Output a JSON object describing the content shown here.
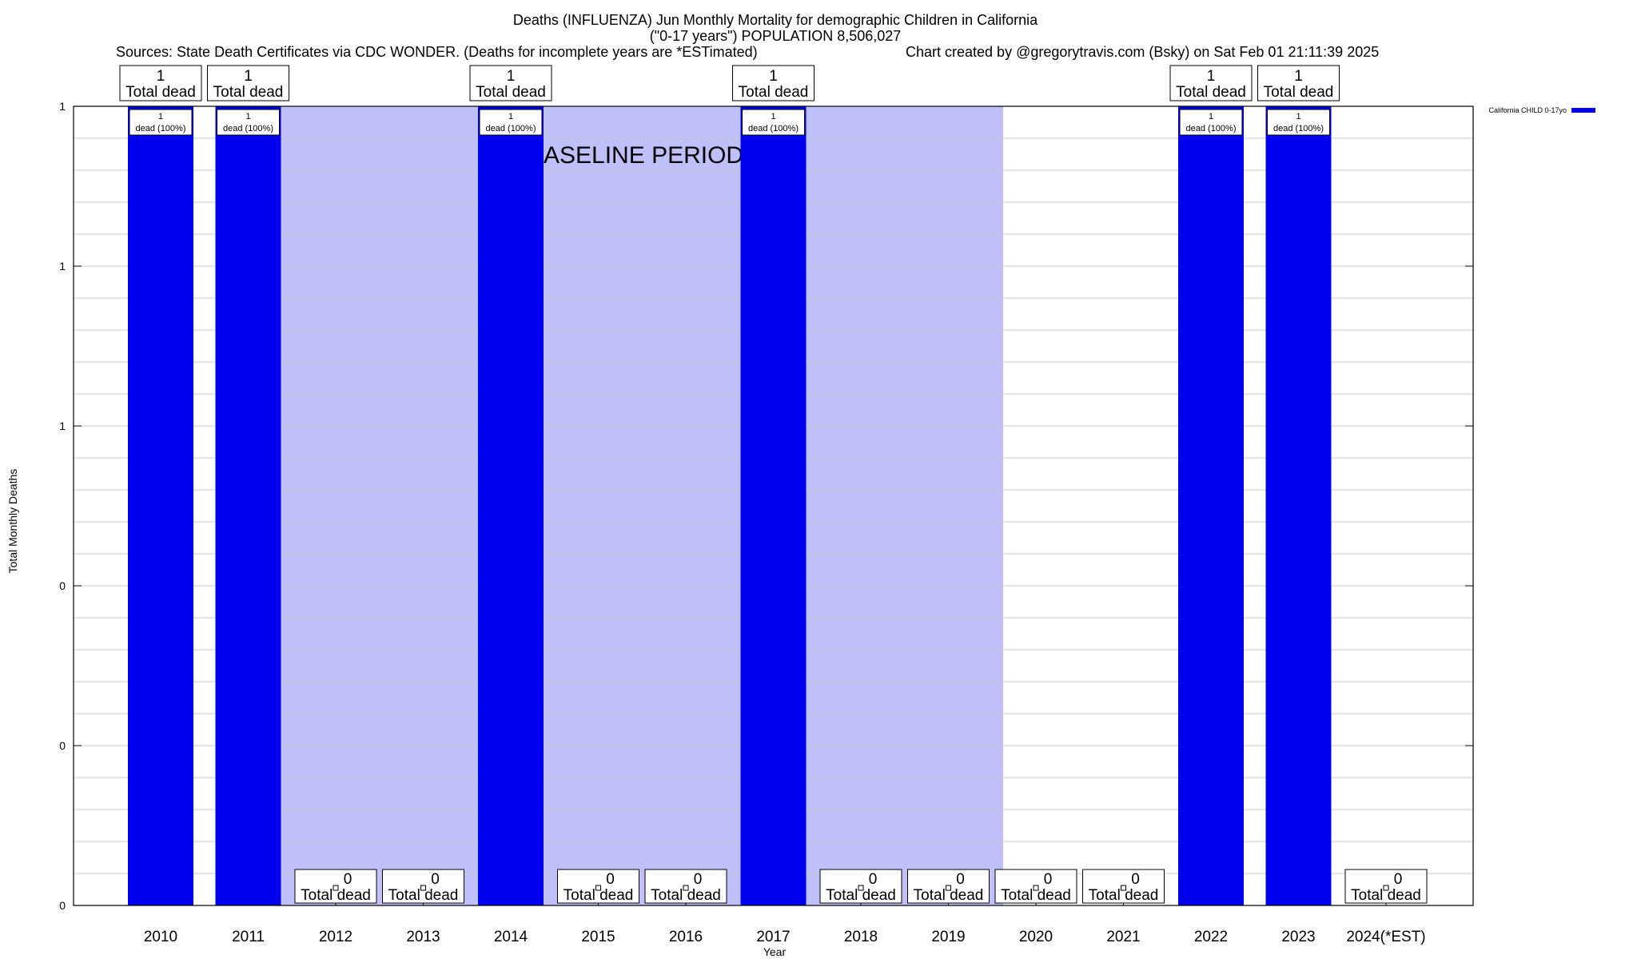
{
  "chart_data": {
    "type": "bar",
    "title_lines": [
      "Deaths (INFLUENZA) Jun Monthly Mortality for demographic Children in California",
      "(\"0-17 years\") POPULATION 8,506,027"
    ],
    "sources": "Sources: State Death Certificates via CDC WONDER. (Deaths for incomplete years are *ESTimated)",
    "credit": "Chart created by @gregorytravis.com (Bsky) on Sat Feb 01 21:11:39 2025",
    "xlabel": "Year",
    "ylabel": "Total Monthly Deaths",
    "categories": [
      "2010",
      "2011",
      "2012",
      "2013",
      "2014",
      "2015",
      "2016",
      "2017",
      "2018",
      "2019",
      "2020",
      "2021",
      "2022",
      "2023",
      "2024(*EST)"
    ],
    "series": [
      {
        "name": "California CHILD 0-17yo",
        "values": [
          1,
          1,
          0,
          0,
          1,
          0,
          0,
          1,
          0,
          0,
          0,
          0,
          1,
          1,
          0
        ],
        "color": "#0000ee"
      }
    ],
    "bar_labels": [
      "dead (100%)",
      "dead (100%)",
      "",
      "",
      "dead (100%)",
      "",
      "",
      "dead (100%)",
      "",
      "",
      "",
      "",
      "dead (100%)",
      "dead (100%)",
      ""
    ],
    "total_label": "Total dead",
    "ylim": [
      0,
      1
    ],
    "ytick_values": [
      0,
      0.2,
      0.4,
      0.6,
      0.8,
      1.0
    ],
    "ytick_labels": [
      "0",
      "0",
      "0",
      "1",
      "1",
      "1"
    ],
    "baseline_label": "BASELINE PERIOD",
    "baseline_ranges": [
      [
        "2012",
        "2013"
      ],
      [
        "2015",
        "2016"
      ],
      [
        "2018",
        "2019"
      ]
    ],
    "baseline_color": "#bfbffa",
    "grid": true,
    "legend_position": "top-right"
  }
}
